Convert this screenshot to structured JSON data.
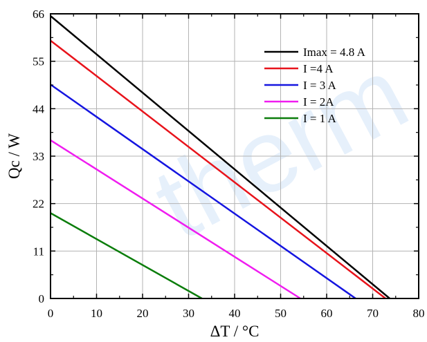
{
  "chart_data": {
    "type": "line",
    "xlabel": "ΔT / °C",
    "ylabel": "Qc / W",
    "xlim": [
      0,
      80
    ],
    "ylim": [
      0,
      66
    ],
    "xticks": [
      0,
      10,
      20,
      30,
      40,
      50,
      60,
      70,
      80
    ],
    "yticks": [
      0,
      11,
      22,
      33,
      44,
      55,
      66
    ],
    "grid": true,
    "legend_position": "top-right",
    "watermark": "therm",
    "series": [
      {
        "name": "Imax = 4.8 A",
        "color": "#000000",
        "x": [
          0,
          73.7
        ],
        "y": [
          65.5,
          0
        ]
      },
      {
        "name": "I =4 A",
        "color": "#e8131b",
        "x": [
          0,
          72.8
        ],
        "y": [
          59.8,
          0
        ]
      },
      {
        "name": "I = 3 A",
        "color": "#1515e0",
        "x": [
          0,
          66.3
        ],
        "y": [
          49.6,
          0
        ]
      },
      {
        "name": "I = 2A",
        "color": "#f01cf0",
        "x": [
          0,
          54.3
        ],
        "y": [
          36.7,
          0
        ]
      },
      {
        "name": "I = 1 A",
        "color": "#0b7d0b",
        "x": [
          0,
          32.9
        ],
        "y": [
          19.8,
          0
        ]
      }
    ]
  }
}
